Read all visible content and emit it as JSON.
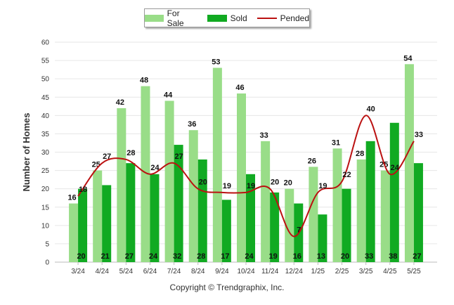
{
  "chart_data": {
    "type": "bar",
    "ylabel": "Number of Homes",
    "xlabel": "",
    "ylim": [
      0,
      60
    ],
    "yticks": [
      0,
      5,
      10,
      15,
      20,
      25,
      30,
      35,
      40,
      45,
      50,
      55,
      60
    ],
    "categories": [
      "3/24",
      "4/24",
      "5/24",
      "6/24",
      "7/24",
      "8/24",
      "9/24",
      "10/24",
      "11/24",
      "12/24",
      "1/25",
      "2/25",
      "3/25",
      "4/25",
      "5/25"
    ],
    "series": [
      {
        "name": "For Sale",
        "kind": "bar",
        "color": "#99dd88",
        "values": [
          16,
          25,
          42,
          48,
          44,
          36,
          53,
          46,
          33,
          20,
          26,
          31,
          28,
          25,
          54
        ]
      },
      {
        "name": "Sold",
        "kind": "bar",
        "color": "#11aa22",
        "values": [
          20,
          21,
          27,
          24,
          32,
          28,
          17,
          24,
          19,
          16,
          13,
          20,
          33,
          38,
          27
        ]
      },
      {
        "name": "Pended",
        "kind": "line",
        "color": "#bb1111",
        "values": [
          18,
          27,
          28,
          24,
          27,
          20,
          19,
          19,
          20,
          7,
          19,
          22,
          40,
          24,
          33
        ]
      }
    ],
    "grid": true,
    "legend_position": "top-center"
  },
  "footer": {
    "copyright": "Copyright © Trendgraphix, Inc."
  }
}
